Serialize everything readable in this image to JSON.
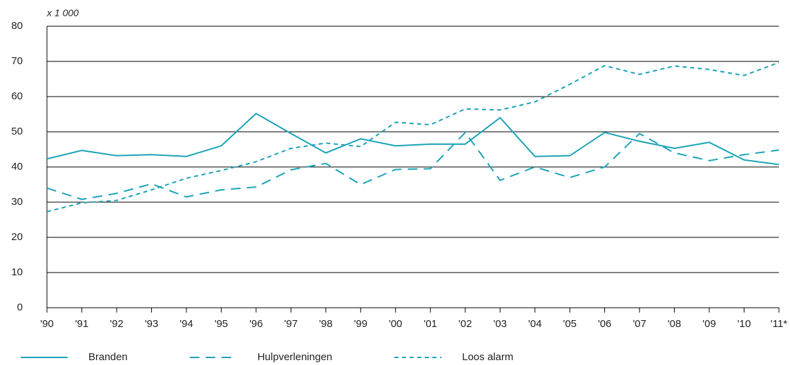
{
  "chart_data": {
    "type": "line",
    "y_unit_label": "x 1 000",
    "categories": [
      "'90",
      "'91",
      "'92",
      "'93",
      "'94",
      "'95",
      "'96",
      "'97",
      "'98",
      "'99",
      "'00",
      "'01",
      "'02",
      "'03",
      "'04",
      "'05",
      "'06",
      "'07",
      "'08",
      "'09",
      "'10",
      "'11*"
    ],
    "series": [
      {
        "name": "Branden",
        "color": "#1aa3b8",
        "dash": "solid",
        "values": [
          42.3,
          44.7,
          43.2,
          43.5,
          43.0,
          46.0,
          55.2,
          49.5,
          44.0,
          48.0,
          46.0,
          46.5,
          46.5,
          54.0,
          43.0,
          43.2,
          49.8,
          47.3,
          45.3,
          47.0,
          42.0,
          40.7
        ]
      },
      {
        "name": "Hulpverleningen",
        "color": "#1aa3b8",
        "dash": "dashed",
        "values": [
          34.0,
          30.8,
          32.5,
          35.2,
          31.5,
          33.5,
          34.3,
          39.2,
          41.0,
          35.0,
          39.3,
          39.5,
          49.8,
          36.2,
          40.0,
          37.0,
          40.0,
          49.5,
          44.0,
          41.8,
          43.5,
          44.8
        ]
      },
      {
        "name": "Loos alarm",
        "color": "#1aa3b8",
        "dash": "dotted",
        "values": [
          27.3,
          29.8,
          30.5,
          33.5,
          36.8,
          39.0,
          41.5,
          45.3,
          46.8,
          45.8,
          52.7,
          52.0,
          56.5,
          56.2,
          58.5,
          63.5,
          68.8,
          66.3,
          68.7,
          67.7,
          66.0,
          69.7
        ]
      }
    ],
    "ylim": [
      0,
      80
    ],
    "yticks": [
      0,
      10,
      20,
      30,
      40,
      50,
      60,
      70,
      80
    ],
    "grid": true,
    "legend": "bottom"
  }
}
